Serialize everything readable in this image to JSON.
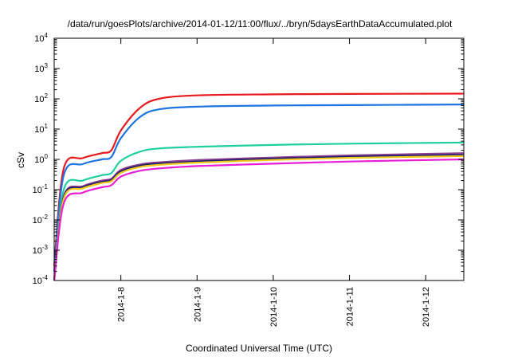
{
  "chart_data": {
    "type": "line",
    "title": "/data/run/goesPlots/archive/2014-01-12/11:00/flux/../bryn/5daysEarthDataAccumulated.plot",
    "xlabel": "Coordinated Universal Time (UTC)",
    "ylabel": "cSv",
    "yscale": "log",
    "ylim": [
      0.0001,
      10000
    ],
    "xlim": [
      "2014-01-07 03:00",
      "2014-01-12 12:00"
    ],
    "x_ticks": [
      "2014-1-8",
      "2014-1-9",
      "2014-1-10",
      "2014-1-11",
      "2014-1-12"
    ],
    "y_ticks": [
      {
        "value": 0.0001,
        "base": "10",
        "exp": "-4"
      },
      {
        "value": 0.001,
        "base": "10",
        "exp": "-3"
      },
      {
        "value": 0.01,
        "base": "10",
        "exp": "-2"
      },
      {
        "value": 0.1,
        "base": "10",
        "exp": "-1"
      },
      {
        "value": 1,
        "base": "10",
        "exp": "0"
      },
      {
        "value": 10,
        "base": "10",
        "exp": "1"
      },
      {
        "value": 100,
        "base": "10",
        "exp": "2"
      },
      {
        "value": 1000,
        "base": "10",
        "exp": "3"
      },
      {
        "value": 10000,
        "base": "10",
        "exp": "4"
      }
    ],
    "grid": false,
    "legend": "none",
    "series": [
      {
        "color": "#e8191f",
        "x": [
          "2014-01-07 03:00",
          "2014-01-07 06:00",
          "2014-01-07 12:00",
          "2014-01-07 18:00",
          "2014-01-07 21:00",
          "2014-01-08 00:00",
          "2014-01-08 06:00",
          "2014-01-08 12:00",
          "2014-01-09 00:00",
          "2014-01-10 00:00",
          "2014-01-11 00:00",
          "2014-01-12 12:00"
        ],
        "values": [
          0.0003,
          0.5,
          1.1,
          1.6,
          2.0,
          9,
          50,
          100,
          130,
          140,
          145,
          148
        ]
      },
      {
        "color": "#1e74e0",
        "x": [
          "2014-01-07 03:00",
          "2014-01-07 06:00",
          "2014-01-07 12:00",
          "2014-01-07 18:00",
          "2014-01-07 21:00",
          "2014-01-08 00:00",
          "2014-01-08 06:00",
          "2014-01-08 12:00",
          "2014-01-09 00:00",
          "2014-01-10 00:00",
          "2014-01-11 00:00",
          "2014-01-12 12:00"
        ],
        "values": [
          0.0002,
          0.3,
          0.7,
          1.0,
          1.2,
          5,
          25,
          45,
          55,
          60,
          62,
          65
        ]
      },
      {
        "color": "#1fcf9f",
        "x": [
          "2014-01-07 03:00",
          "2014-01-07 06:00",
          "2014-01-07 12:00",
          "2014-01-07 18:00",
          "2014-01-07 21:00",
          "2014-01-08 00:00",
          "2014-01-08 06:00",
          "2014-01-08 12:00",
          "2014-01-09 00:00",
          "2014-01-10 00:00",
          "2014-01-11 00:00",
          "2014-01-12 12:00"
        ],
        "values": [
          0.0001,
          0.1,
          0.2,
          0.3,
          0.35,
          0.9,
          1.8,
          2.3,
          2.6,
          3.0,
          3.3,
          3.6
        ]
      },
      {
        "color": "#8b3f91",
        "x": [
          "2014-01-07 03:00",
          "2014-01-07 06:00",
          "2014-01-07 12:00",
          "2014-01-07 18:00",
          "2014-01-07 21:00",
          "2014-01-08 00:00",
          "2014-01-08 06:00",
          "2014-01-08 12:00",
          "2014-01-09 00:00",
          "2014-01-10 00:00",
          "2014-01-11 00:00",
          "2014-01-12 12:00"
        ],
        "values": [
          0.0001,
          0.06,
          0.13,
          0.2,
          0.23,
          0.45,
          0.68,
          0.8,
          0.95,
          1.15,
          1.35,
          1.6
        ]
      },
      {
        "color": "#1a1f6b",
        "x": [
          "2014-01-07 03:00",
          "2014-01-07 06:00",
          "2014-01-07 12:00",
          "2014-01-07 18:00",
          "2014-01-07 21:00",
          "2014-01-08 00:00",
          "2014-01-08 06:00",
          "2014-01-08 12:00",
          "2014-01-09 00:00",
          "2014-01-10 00:00",
          "2014-01-11 00:00",
          "2014-01-12 12:00"
        ],
        "values": [
          0.0001,
          0.055,
          0.12,
          0.18,
          0.21,
          0.4,
          0.62,
          0.72,
          0.85,
          1.05,
          1.22,
          1.4
        ]
      },
      {
        "color": "#f2c81e",
        "x": [
          "2014-01-07 03:00",
          "2014-01-07 06:00",
          "2014-01-07 12:00",
          "2014-01-07 18:00",
          "2014-01-07 21:00",
          "2014-01-08 00:00",
          "2014-01-08 06:00",
          "2014-01-08 12:00",
          "2014-01-09 00:00",
          "2014-01-10 00:00",
          "2014-01-11 00:00",
          "2014-01-12 12:00"
        ],
        "values": [
          0.0001,
          0.05,
          0.11,
          0.165,
          0.19,
          0.36,
          0.56,
          0.66,
          0.78,
          0.96,
          1.12,
          1.28
        ]
      },
      {
        "color": "#e81fd6",
        "x": [
          "2014-01-07 03:00",
          "2014-01-07 06:00",
          "2014-01-07 12:00",
          "2014-01-07 18:00",
          "2014-01-07 21:00",
          "2014-01-08 00:00",
          "2014-01-08 06:00",
          "2014-01-08 12:00",
          "2014-01-09 00:00",
          "2014-01-10 00:00",
          "2014-01-11 00:00",
          "2014-01-12 12:00"
        ],
        "values": [
          0.0001,
          0.035,
          0.08,
          0.12,
          0.14,
          0.27,
          0.42,
          0.5,
          0.6,
          0.72,
          0.85,
          1.0
        ]
      }
    ]
  }
}
